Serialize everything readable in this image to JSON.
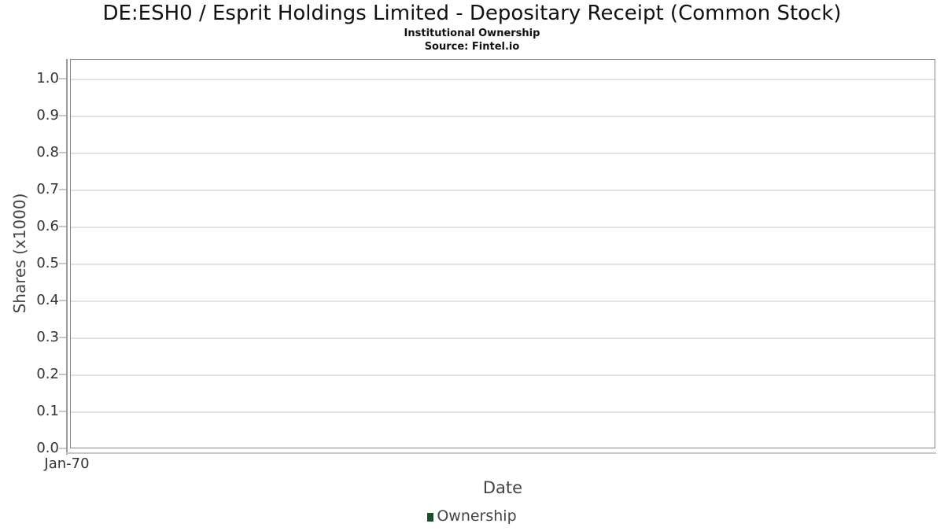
{
  "header": {
    "title": "DE:ESH0 / Esprit Holdings Limited - Depositary Receipt (Common Stock)",
    "subtitle": "Institutional Ownership",
    "source": "Source: Fintel.io"
  },
  "chart_data": {
    "type": "line",
    "title": "DE:ESH0 / Esprit Holdings Limited - Depositary Receipt (Common Stock)",
    "subtitle": "Institutional Ownership",
    "source_note": "Source: Fintel.io",
    "xlabel": "Date",
    "ylabel": "Shares (x1000)",
    "ylim": [
      0.0,
      1.05
    ],
    "yticks": [
      "0.0",
      "0.1",
      "0.2",
      "0.3",
      "0.4",
      "0.5",
      "0.6",
      "0.7",
      "0.8",
      "0.9",
      "1.0"
    ],
    "xticks": [
      "Jan-70"
    ],
    "grid": "horizontal",
    "legend_position": "bottom-center",
    "series": [
      {
        "name": "Ownership",
        "color": "#1d4e2c",
        "x": [],
        "y": []
      }
    ]
  },
  "colors": {
    "panel_border": "#868686",
    "gridline": "#e2e2e2",
    "tick": "#c9c9c9",
    "tick_label": "#333333",
    "axis_title": "#444444",
    "legend_marker": "#1d4e2c"
  }
}
